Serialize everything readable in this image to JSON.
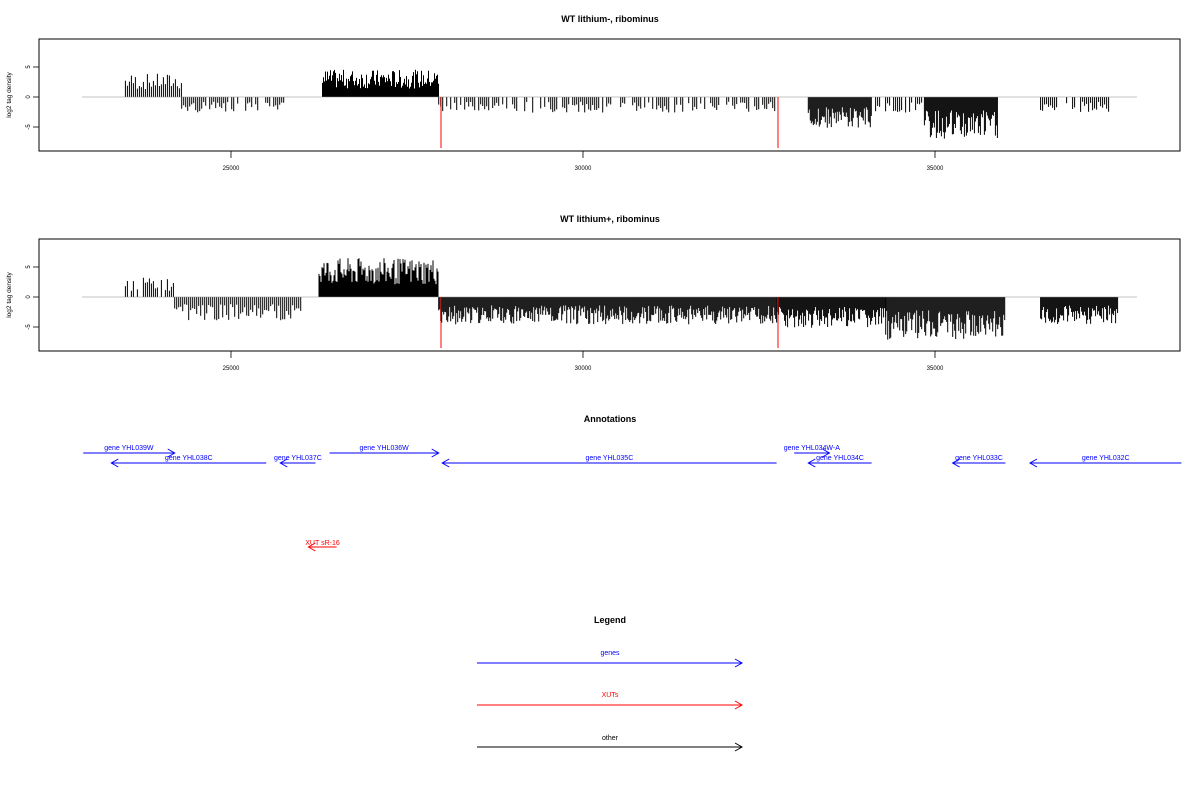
{
  "panels": [
    {
      "title": "WT lithium-, ribominus",
      "ylabel": "log2 tag density",
      "xticks": [
        25000,
        30000,
        35000
      ],
      "yticks": [
        5,
        0,
        -5
      ],
      "markers": [
        27950,
        32750
      ]
    },
    {
      "title": "WT lithium+, ribominus",
      "ylabel": "log2 tag density",
      "xticks": [
        25000,
        30000,
        35000
      ],
      "yticks": [
        5,
        0,
        -5
      ],
      "markers": [
        27950,
        32750
      ]
    }
  ],
  "annotations": {
    "title": "Annotations",
    "genes": [
      {
        "label": "gene YHL039W",
        "strand": "+",
        "start": 22900,
        "end": 24200,
        "row": 0
      },
      {
        "label": "gene YHL038C",
        "strand": "-",
        "start": 23300,
        "end": 25500,
        "row": 1
      },
      {
        "label": "gene YHL037C",
        "strand": "-",
        "start": 25700,
        "end": 26200,
        "row": 1
      },
      {
        "label": "gene YHL036W",
        "strand": "+",
        "start": 26400,
        "end": 27950,
        "row": 0
      },
      {
        "label": "gene YHL035C",
        "strand": "-",
        "start": 28000,
        "end": 32750,
        "row": 1
      },
      {
        "label": "gene YHL034W-A",
        "strand": "+",
        "start": 33000,
        "end": 33500,
        "row": 0
      },
      {
        "label": "gene YHL034C",
        "strand": "-",
        "start": 33200,
        "end": 34100,
        "row": 1
      },
      {
        "label": "gene YHL033C",
        "strand": "-",
        "start": 35250,
        "end": 36000,
        "row": 1
      },
      {
        "label": "gene YHL032C",
        "strand": "-",
        "start": 36350,
        "end": 38500,
        "row": 1
      }
    ],
    "xuts": [
      {
        "label": "XUT sR-16",
        "strand": "-",
        "start": 26100,
        "end": 26500
      }
    ]
  },
  "legend": {
    "title": "Legend",
    "items": [
      {
        "label": "genes",
        "color": "#0000ff"
      },
      {
        "label": "XUTs",
        "color": "#ff0000"
      },
      {
        "label": "other",
        "color": "#000000"
      }
    ]
  },
  "chart_data": [
    {
      "type": "bar",
      "title": "WT lithium-, ribominus",
      "ylabel": "log2 tag density",
      "xlim": [
        22900,
        38500
      ],
      "ylim": [
        -8.5,
        9
      ],
      "segments": [
        {
          "start": 23500,
          "end": 24300,
          "value": 3
        },
        {
          "start": 24300,
          "end": 25800,
          "value": -2
        },
        {
          "start": 26300,
          "end": 27950,
          "value": 3.5
        },
        {
          "start": 27950,
          "end": 32750,
          "value": -2
        },
        {
          "start": 33200,
          "end": 34100,
          "value": -4
        },
        {
          "start": 34100,
          "end": 34850,
          "value": -2
        },
        {
          "start": 34850,
          "end": 35900,
          "value": -5.5
        },
        {
          "start": 36500,
          "end": 37500,
          "value": -2
        }
      ],
      "markers": [
        27950,
        32750
      ]
    },
    {
      "type": "bar",
      "title": "WT lithium+, ribominus",
      "ylabel": "log2 tag density",
      "xlim": [
        22900,
        38500
      ],
      "ylim": [
        -8.5,
        9
      ],
      "segments": [
        {
          "start": 23500,
          "end": 24200,
          "value": 2.5
        },
        {
          "start": 24200,
          "end": 26000,
          "value": -3
        },
        {
          "start": 26250,
          "end": 27950,
          "value": 5
        },
        {
          "start": 27950,
          "end": 32750,
          "value": -3.5
        },
        {
          "start": 32750,
          "end": 34300,
          "value": -4
        },
        {
          "start": 34300,
          "end": 36000,
          "value": -5.5
        },
        {
          "start": 36500,
          "end": 37600,
          "value": -3.5
        }
      ],
      "markers": [
        27950,
        32750
      ]
    }
  ]
}
